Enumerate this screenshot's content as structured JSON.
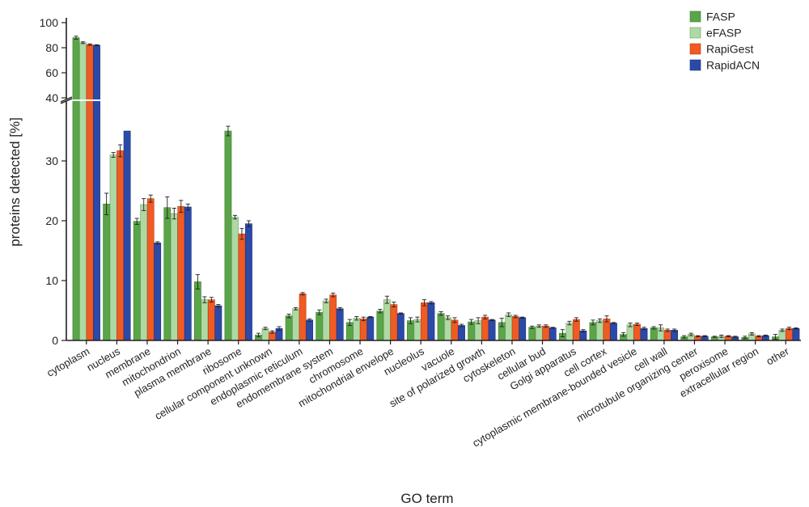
{
  "chart_data": {
    "type": "bar",
    "title": "",
    "xlabel": "GO term",
    "ylabel": "proteins detected [%]",
    "axis_break": {
      "lower_max": 38,
      "upper_min": 40,
      "upper_max": 100
    },
    "yticks_lower": [
      "0",
      "10",
      "20",
      "30"
    ],
    "yticks_upper": [
      "40",
      "60",
      "80",
      "100"
    ],
    "legend_position": "top-right",
    "grid": false,
    "categories": [
      "cytoplasm",
      "nucleus",
      "membrane",
      "mitochondrion",
      "plasma membrane",
      "ribosome",
      "cellular component unknown",
      "endoplasmic reticulum",
      "endomembrane system",
      "chromosome",
      "mitochondrial envelope",
      "nucleolus",
      "vacuole",
      "site of polarized growth",
      "cytoskeleton",
      "cellular bud",
      "Golgi apparatus",
      "cell cortex",
      "cytoplasmic membrane-bounded vesicle",
      "cell wall",
      "microtubule organizing center",
      "peroxisome",
      "extracellular region",
      "other"
    ],
    "series": [
      {
        "name": "FASP",
        "color": "#5aa548",
        "values": [
          88,
          22.8,
          19.9,
          22.2,
          9.8,
          35.0,
          0.9,
          4.1,
          4.7,
          3.0,
          4.9,
          3.3,
          4.5,
          3.1,
          3.0,
          2.2,
          1.2,
          3.0,
          1.0,
          2.1,
          0.6,
          0.6,
          0.5,
          0.6
        ],
        "errors": [
          1.2,
          1.8,
          0.5,
          1.8,
          1.2,
          0.8,
          0.3,
          0.3,
          0.4,
          0.5,
          0.3,
          0.5,
          0.3,
          0.4,
          0.7,
          0.2,
          0.6,
          0.4,
          0.3,
          0.2,
          0.2,
          0.1,
          0.2,
          0.4
        ]
      },
      {
        "name": "eFASP",
        "color": "#aed9a2",
        "values": [
          84,
          31.0,
          22.7,
          21.2,
          6.8,
          20.6,
          2.0,
          5.3,
          6.6,
          3.7,
          6.8,
          3.5,
          3.8,
          3.3,
          4.3,
          2.4,
          2.9,
          3.3,
          2.6,
          2.1,
          1.0,
          0.7,
          1.1,
          1.7
        ],
        "errors": [
          0.7,
          0.4,
          1.0,
          0.9,
          0.5,
          0.3,
          0.2,
          0.2,
          0.3,
          0.3,
          0.6,
          0.4,
          0.3,
          0.5,
          0.3,
          0.2,
          0.3,
          0.3,
          0.3,
          0.5,
          0.2,
          0.2,
          0.2,
          0.2
        ]
      },
      {
        "name": "RapiGest",
        "color": "#f05a23",
        "values": [
          82.5,
          31.7,
          23.7,
          22.4,
          6.8,
          17.8,
          1.4,
          7.8,
          7.6,
          3.6,
          6.0,
          6.3,
          3.4,
          3.9,
          4.0,
          2.4,
          3.5,
          3.6,
          2.7,
          1.7,
          0.7,
          0.7,
          0.7,
          2.0
        ],
        "errors": [
          0.6,
          1.0,
          0.6,
          1.0,
          0.4,
          0.9,
          0.2,
          0.2,
          0.3,
          0.3,
          0.4,
          0.5,
          0.4,
          0.3,
          0.2,
          0.2,
          0.3,
          0.5,
          0.2,
          0.2,
          0.1,
          0.1,
          0.1,
          0.2
        ]
      },
      {
        "name": "RapidACN",
        "color": "#2b4aa8",
        "values": [
          82,
          35.0,
          16.3,
          22.3,
          5.8,
          19.5,
          2.0,
          3.4,
          5.3,
          3.9,
          4.5,
          6.3,
          2.5,
          3.4,
          3.8,
          2.1,
          1.6,
          2.9,
          2.0,
          1.7,
          0.7,
          0.6,
          0.8,
          2.0
        ],
        "errors": [
          0.4,
          0.0,
          0.2,
          0.5,
          0.2,
          0.5,
          0.3,
          0.2,
          0.2,
          0.1,
          0.1,
          0.2,
          0.2,
          0.1,
          0.1,
          0.1,
          0.2,
          0.1,
          0.2,
          0.2,
          0.1,
          0.1,
          0.1,
          0.1
        ]
      }
    ]
  }
}
